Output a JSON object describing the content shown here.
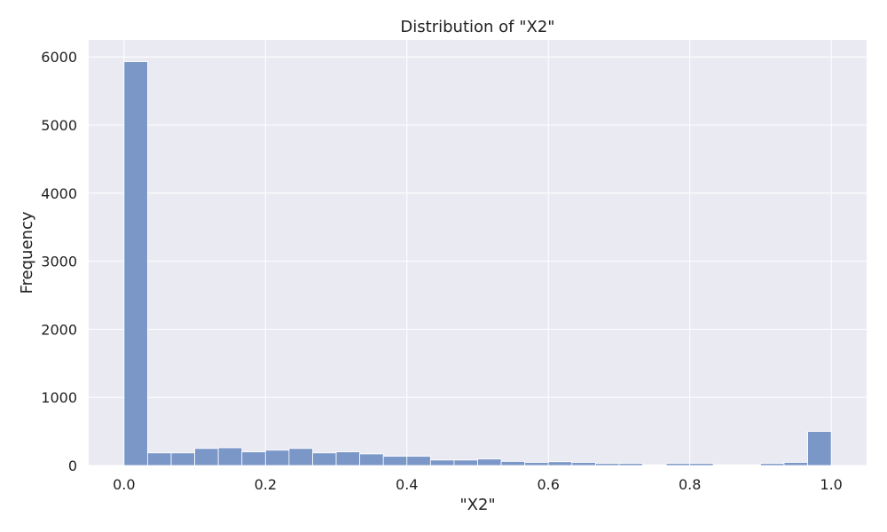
{
  "chart_data": {
    "type": "bar",
    "subtype": "histogram",
    "title": "Distribution of \"X2\"",
    "xlabel": "\"X2\"",
    "ylabel": "Frequency",
    "xlim": [
      -0.05,
      1.05
    ],
    "ylim": [
      0,
      6250
    ],
    "xticks": [
      0.0,
      0.2,
      0.4,
      0.6,
      0.8,
      1.0
    ],
    "xtick_labels": [
      "0.0",
      "0.2",
      "0.4",
      "0.6",
      "0.8",
      "1.0"
    ],
    "yticks": [
      0,
      1000,
      2000,
      3000,
      4000,
      5000,
      6000
    ],
    "ytick_labels": [
      "0",
      "1000",
      "2000",
      "3000",
      "4000",
      "5000",
      "6000"
    ],
    "grid": true,
    "background_color": "#eaeaf2",
    "bar_color": "#7a97c8",
    "bins": [
      [
        0.0,
        0.0333,
        5930
      ],
      [
        0.0333,
        0.0667,
        185
      ],
      [
        0.0667,
        0.1,
        185
      ],
      [
        0.1,
        0.1333,
        250
      ],
      [
        0.1333,
        0.1667,
        260
      ],
      [
        0.1667,
        0.2,
        200
      ],
      [
        0.2,
        0.2333,
        225
      ],
      [
        0.2333,
        0.2667,
        250
      ],
      [
        0.2667,
        0.3,
        185
      ],
      [
        0.3,
        0.3333,
        200
      ],
      [
        0.3333,
        0.3667,
        170
      ],
      [
        0.3667,
        0.4,
        135
      ],
      [
        0.4,
        0.4333,
        135
      ],
      [
        0.4333,
        0.4667,
        80
      ],
      [
        0.4667,
        0.5,
        80
      ],
      [
        0.5,
        0.5333,
        95
      ],
      [
        0.5333,
        0.5667,
        60
      ],
      [
        0.5667,
        0.6,
        45
      ],
      [
        0.6,
        0.6333,
        55
      ],
      [
        0.6333,
        0.6667,
        45
      ],
      [
        0.6667,
        0.7,
        30
      ],
      [
        0.7,
        0.7333,
        30
      ],
      [
        0.7333,
        0.7667,
        10
      ],
      [
        0.7667,
        0.8,
        30
      ],
      [
        0.8,
        0.8333,
        30
      ],
      [
        0.8333,
        0.8667,
        10
      ],
      [
        0.8667,
        0.9,
        10
      ],
      [
        0.9,
        0.9333,
        30
      ],
      [
        0.9333,
        0.9667,
        45
      ],
      [
        0.9667,
        1.0,
        500
      ]
    ]
  }
}
